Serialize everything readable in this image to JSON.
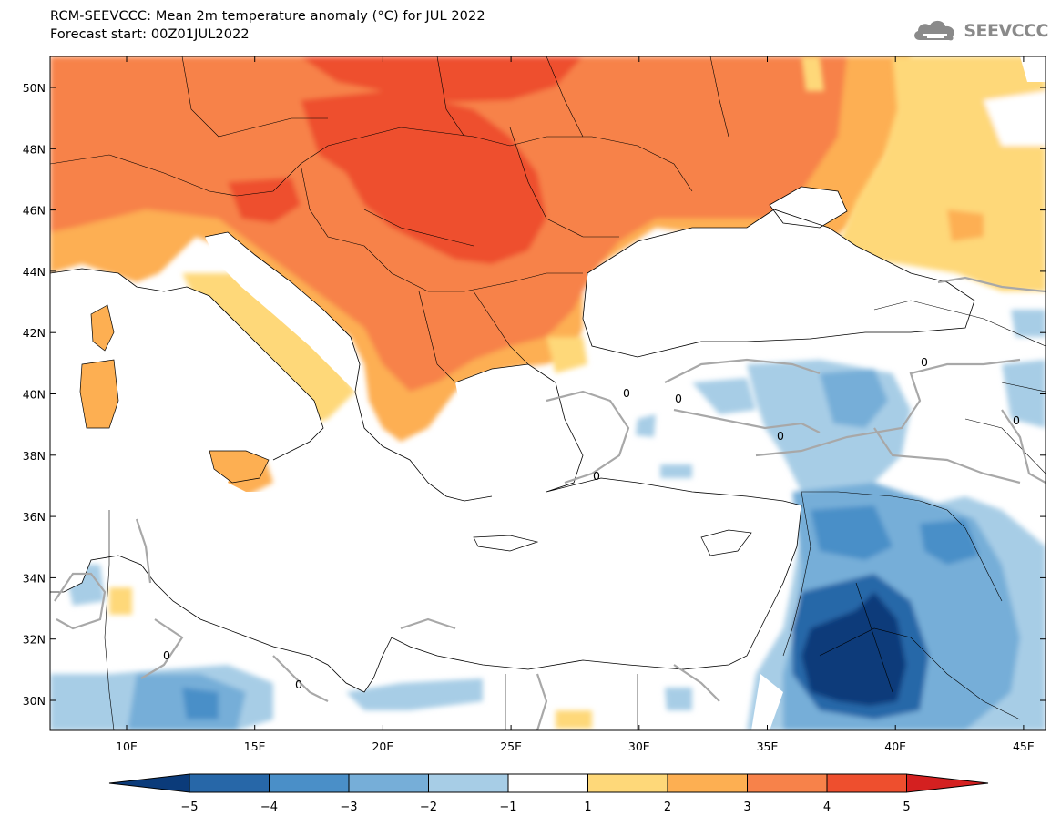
{
  "header": {
    "title": "RCM-SEEVCCC: Mean 2m temperature anomaly (°C) for JUL 2022",
    "subtitle": "Forecast start: 00Z01JUL2022",
    "logo_text": "SEEVCCC",
    "logo_icon": "cloud-icon"
  },
  "map": {
    "lat_labels": [
      "50N",
      "48N",
      "46N",
      "44N",
      "42N",
      "40N",
      "38N",
      "36N",
      "34N",
      "32N",
      "30N"
    ],
    "lon_labels": [
      "10E",
      "15E",
      "20E",
      "25E",
      "30E",
      "35E",
      "40E",
      "45E"
    ],
    "contour_label": "0",
    "region": "Southeastern Europe, Mediterranean, Black Sea, Middle East"
  },
  "colorbar": {
    "labels": [
      "−5",
      "−4",
      "−3",
      "−2",
      "−1",
      "1",
      "2",
      "3",
      "4",
      "5"
    ],
    "colors": [
      "#0b3b7a",
      "#2767a8",
      "#4a8fc8",
      "#76aed8",
      "#a7cde6",
      "#ffffff",
      "#fed879",
      "#fdaf52",
      "#f7824a",
      "#ee4f2e",
      "#d42020"
    ]
  }
}
